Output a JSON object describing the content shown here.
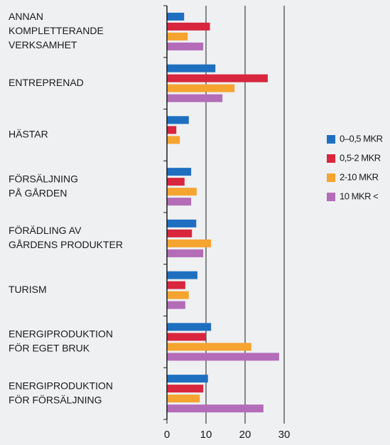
{
  "chart_data": {
    "type": "hbar",
    "categories": [
      [
        "ANNAN",
        "KOMPLETTERANDE",
        "VERKSAMHET"
      ],
      [
        "ENTREPRENAD"
      ],
      [
        "HÄSTAR"
      ],
      [
        "FÖRSÄLJNING",
        "PÅ GÅRDEN"
      ],
      [
        "FÖRÄDLING AV",
        "GÅRDENS PRODUKTER"
      ],
      [
        "TURISM"
      ],
      [
        "ENERGIPRODUKTION",
        "FÖR EGET BRUK"
      ],
      [
        "ENERGIPRODUKTION",
        "FÖR FÖRSÄLJNING"
      ]
    ],
    "series": [
      {
        "name": "0–0,5 MKR",
        "color": "#1f6fc0",
        "values": [
          4.4,
          12.4,
          5.6,
          6.2,
          7.5,
          7.8,
          11.3,
          10.5
        ]
      },
      {
        "name": "0,5-2 MKR",
        "color": "#d7263d",
        "values": [
          11,
          25.8,
          2.4,
          4.5,
          6.4,
          4.7,
          10,
          9.3
        ]
      },
      {
        "name": "2-10 MKR",
        "color": "#f5a430",
        "values": [
          5.3,
          17.3,
          3.3,
          7.6,
          11.3,
          5.6,
          21.6,
          8.4
        ]
      },
      {
        "name": "10 MKR <",
        "color": "#b36cb8",
        "values": [
          9.3,
          14.2,
          null,
          6.2,
          9.3,
          4.7,
          28.7,
          24.7
        ]
      }
    ],
    "xlim": [
      0,
      30
    ],
    "xticks": [
      0,
      10,
      20,
      30
    ],
    "grid": true,
    "legend": "right"
  }
}
